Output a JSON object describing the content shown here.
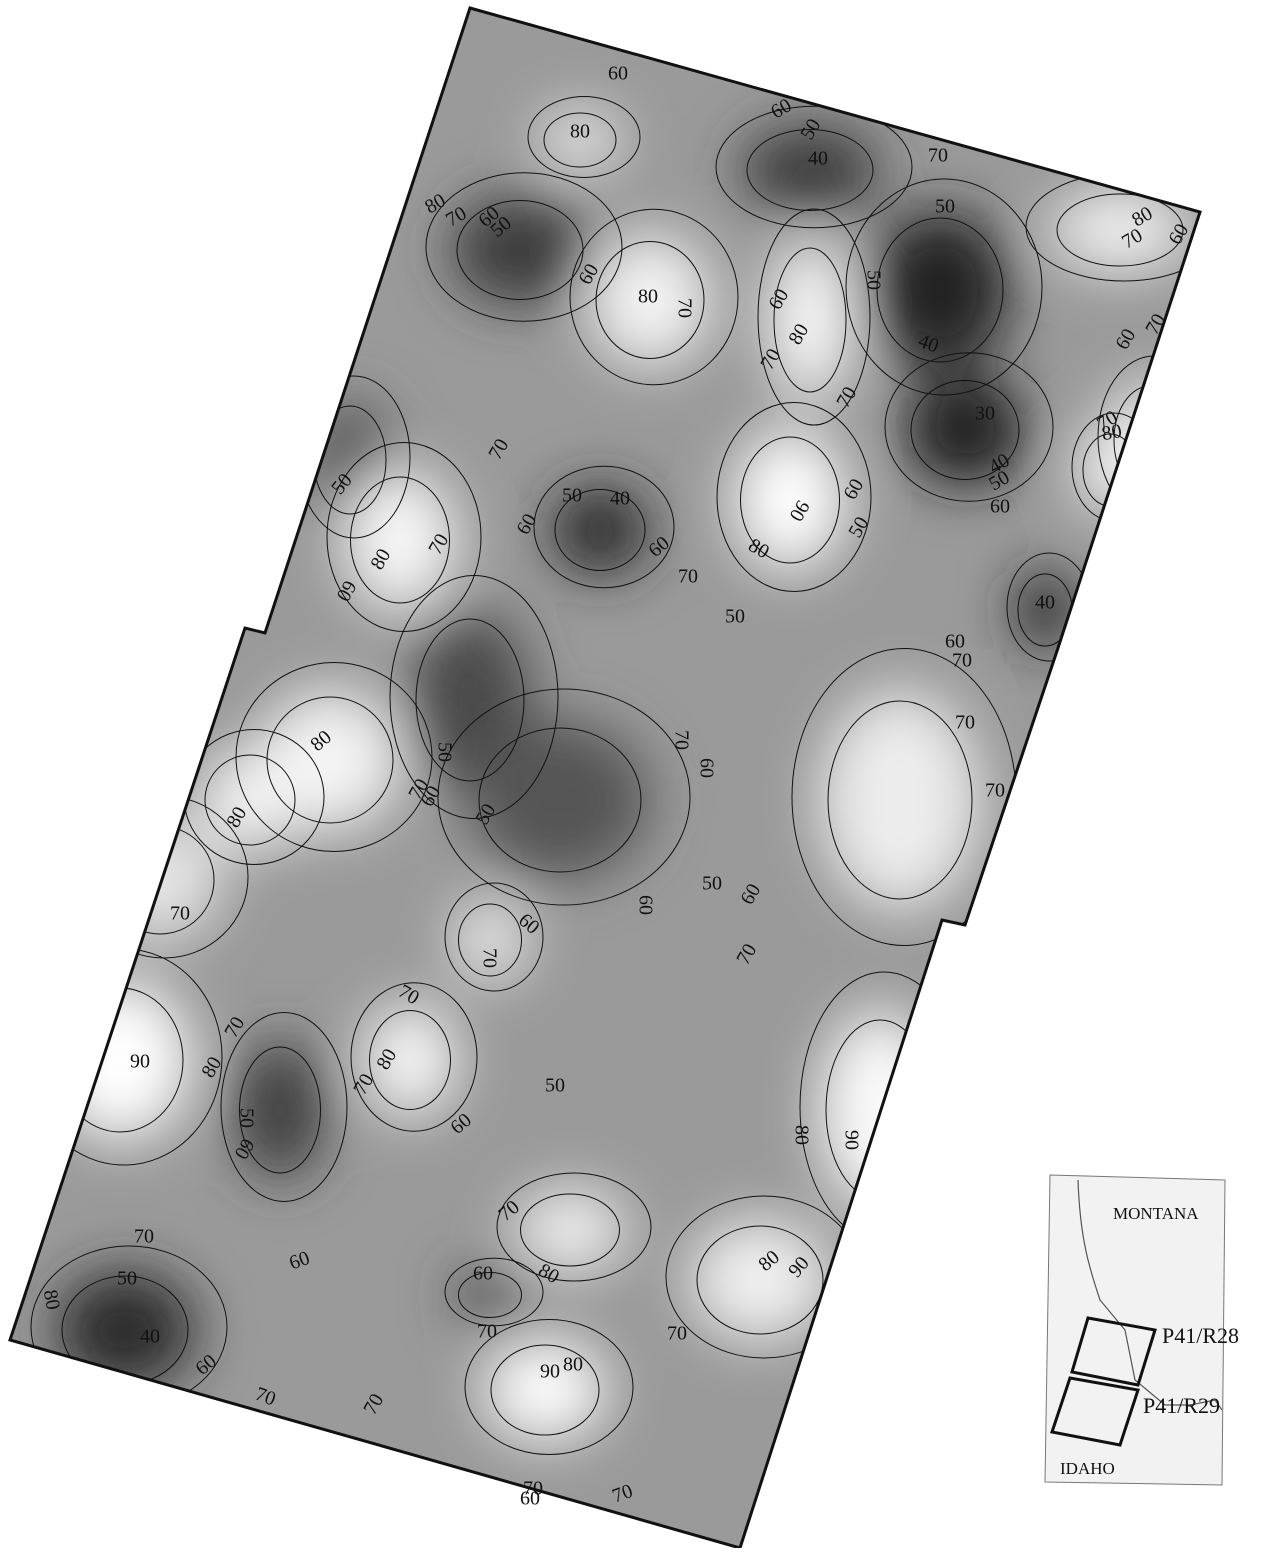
{
  "map": {
    "contour_labels": [
      60,
      80,
      60,
      50,
      40,
      70,
      80,
      70,
      60,
      50,
      50,
      80,
      70,
      60,
      60,
      80,
      70,
      60,
      80,
      50,
      70,
      40,
      60,
      70,
      70,
      70,
      30,
      70,
      80,
      50,
      40,
      50,
      60,
      50,
      40,
      90,
      60,
      60,
      70,
      50,
      80,
      80,
      60,
      60,
      70,
      50,
      40,
      60,
      70,
      70,
      80,
      50,
      70,
      60,
      70,
      60,
      50,
      70,
      80,
      50,
      60,
      60,
      60,
      70,
      70,
      70,
      70,
      70,
      90,
      80,
      80,
      70,
      50,
      50,
      60,
      60,
      80,
      90,
      70,
      70,
      60,
      80,
      90,
      80,
      50,
      60,
      80,
      70,
      40,
      70,
      60,
      80,
      90,
      70,
      70,
      70,
      60,
      70
    ],
    "inset": {
      "states": [
        "MONTANA",
        "IDAHO"
      ],
      "scenes": [
        "P41/R28",
        "P41/R29"
      ]
    }
  }
}
